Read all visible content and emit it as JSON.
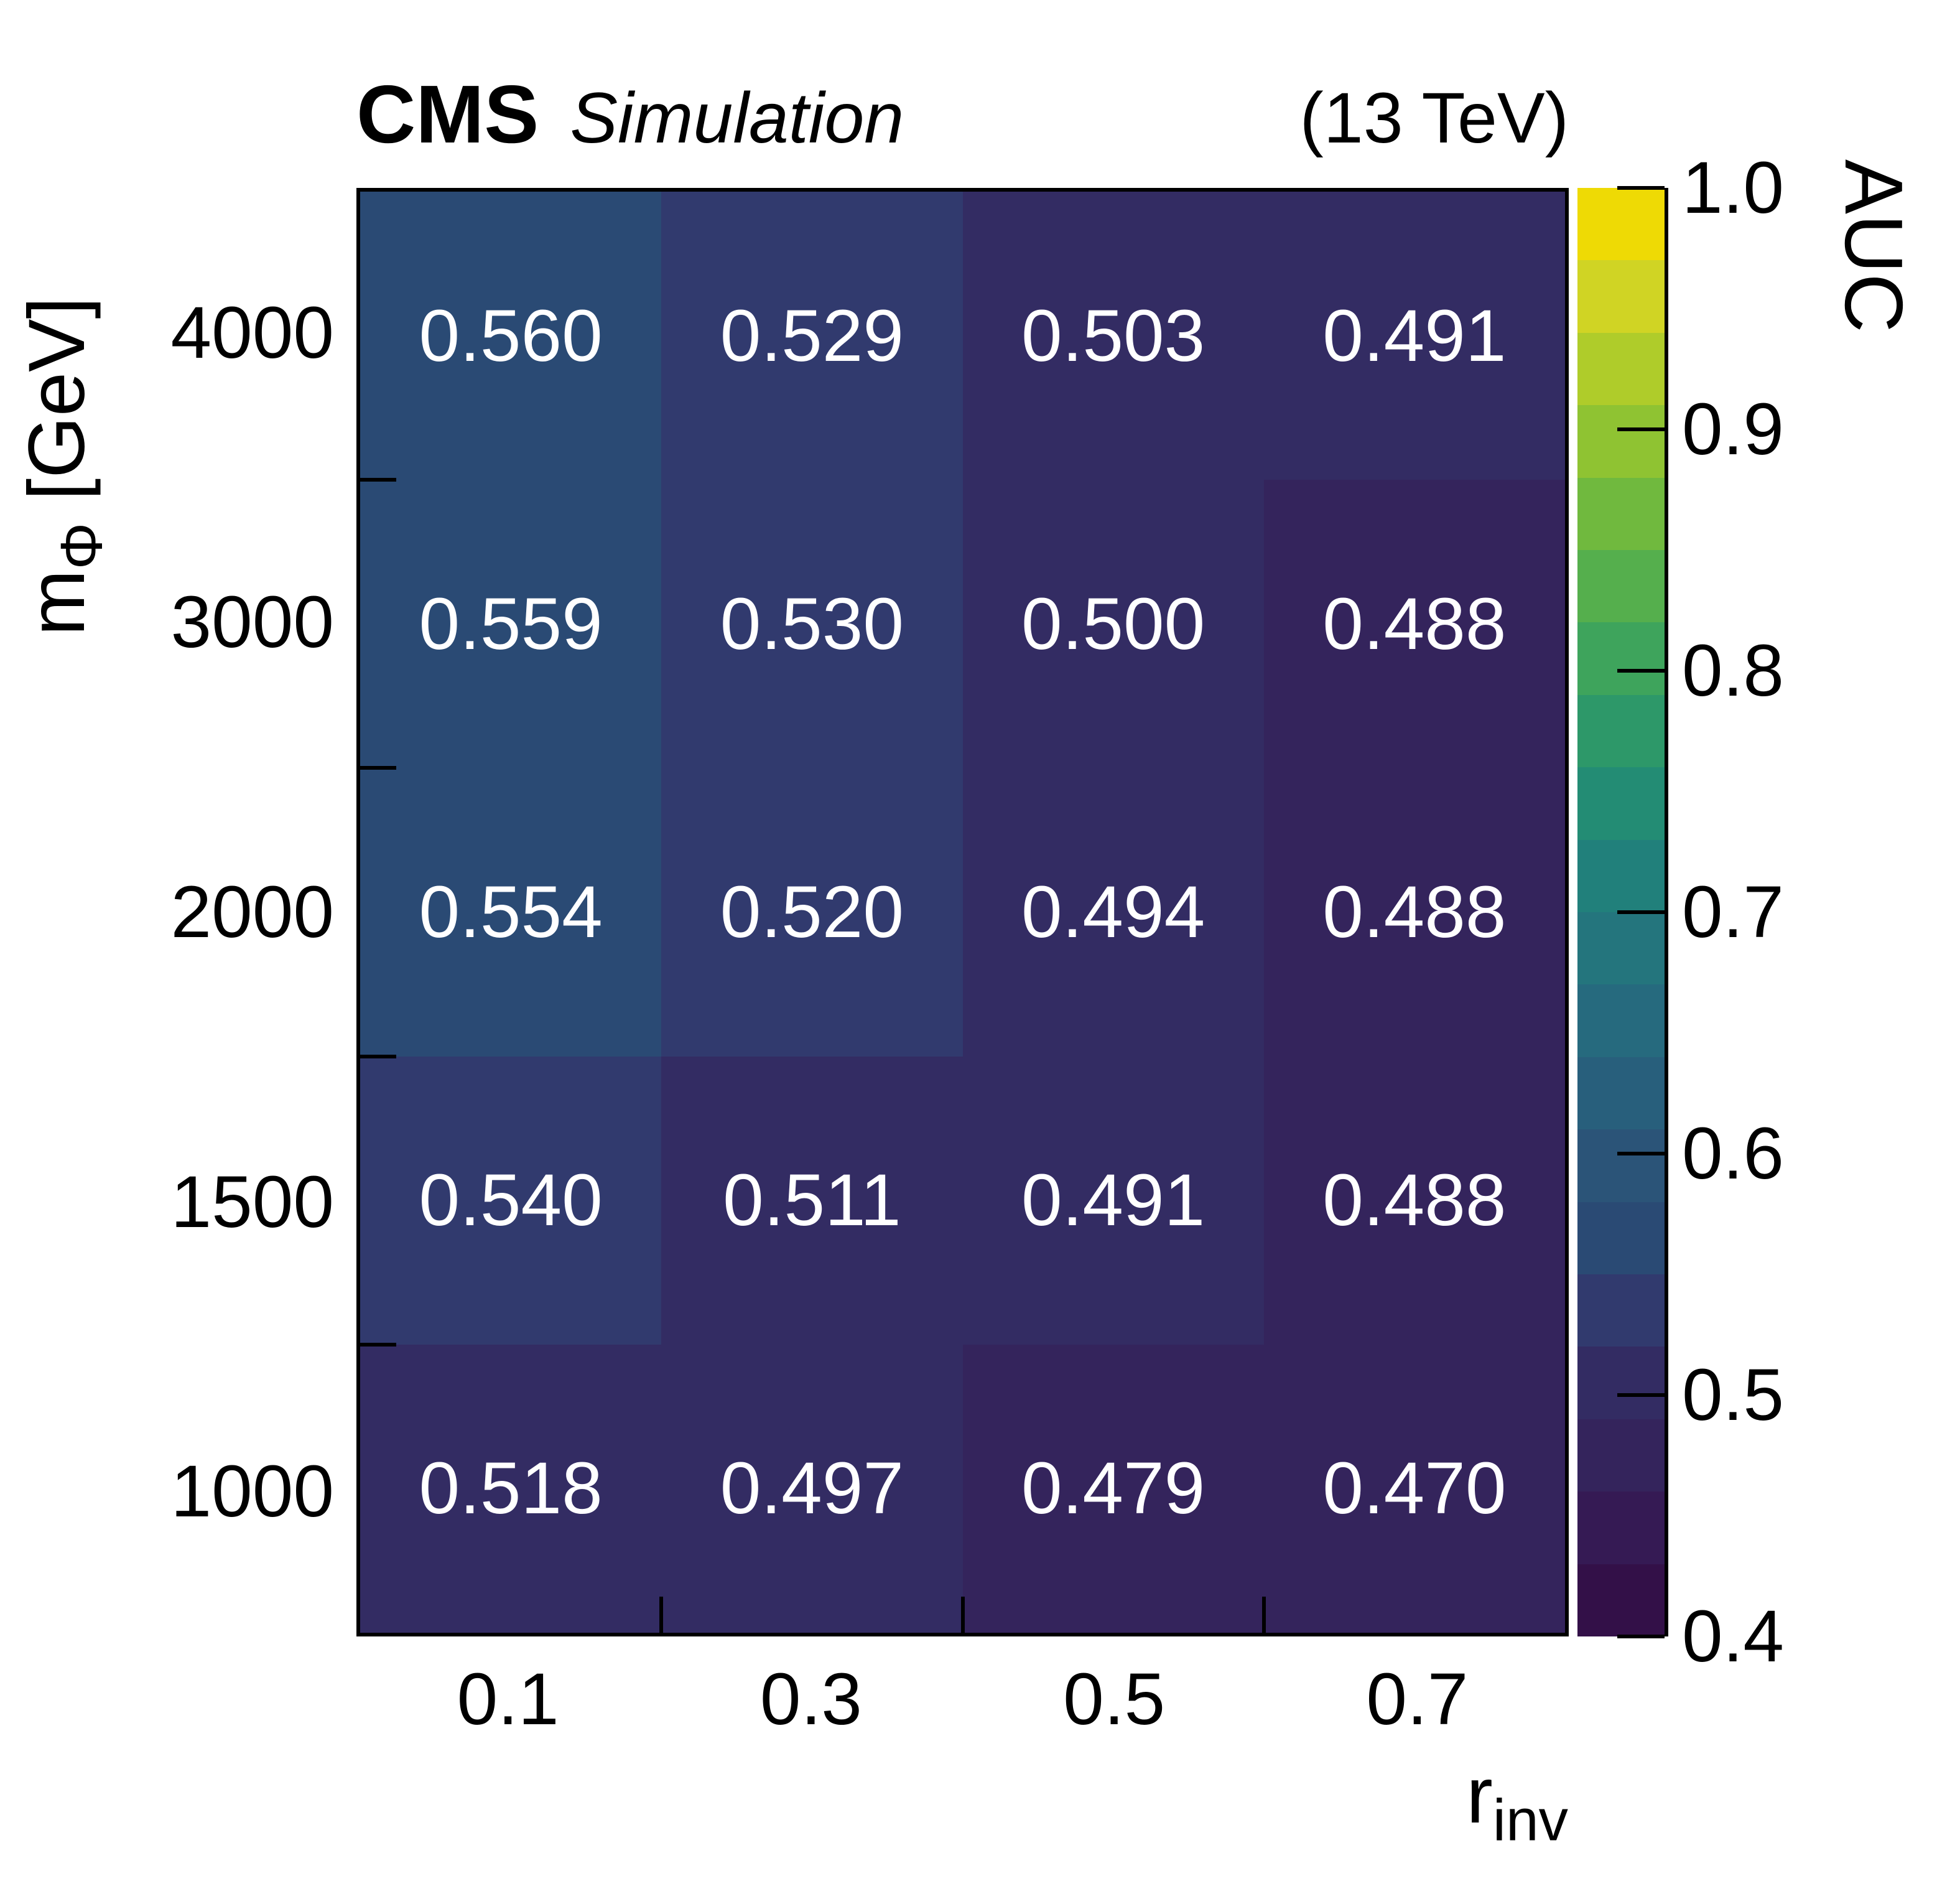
{
  "figure": {
    "header": {
      "experiment": "CMS",
      "label": "Simulation",
      "energy": "(13 TeV)"
    },
    "x_axis": {
      "title_main": "r",
      "title_sub": "inv",
      "tick_labels": [
        "0.1",
        "0.3",
        "0.5",
        "0.7"
      ]
    },
    "y_axis": {
      "title_main": "m",
      "title_sub": "Φ",
      "title_suffix": " [GeV]",
      "tick_labels": [
        "4000",
        "3000",
        "2000",
        "1500",
        "1000"
      ]
    },
    "colorbar": {
      "title": "AUC",
      "min": 0.4,
      "max": 1.0,
      "tick_values": [
        1.0,
        0.9,
        0.8,
        0.7,
        0.6,
        0.5,
        0.4
      ],
      "tick_labels": [
        "1.0",
        "0.9",
        "0.8",
        "0.7",
        "0.6",
        "0.5",
        "0.4"
      ]
    }
  },
  "chart_data": {
    "type": "heatmap",
    "title": "CMS Simulation (13 TeV)",
    "xlabel": "r_inv",
    "ylabel": "m_Phi [GeV]",
    "zlabel": "AUC",
    "x": [
      "0.1",
      "0.3",
      "0.5",
      "0.7"
    ],
    "y": [
      "4000",
      "3000",
      "2000",
      "1500",
      "1000"
    ],
    "zlim": [
      0.4,
      1.0
    ],
    "n_levels": 20,
    "grid": false,
    "rows": [
      {
        "y": "4000",
        "values": [
          0.56,
          0.529,
          0.503,
          0.491
        ],
        "labels": [
          "0.560",
          "0.529",
          "0.503",
          "0.491"
        ]
      },
      {
        "y": "3000",
        "values": [
          0.559,
          0.53,
          0.5,
          0.488
        ],
        "labels": [
          "0.559",
          "0.530",
          "0.500",
          "0.488"
        ]
      },
      {
        "y": "2000",
        "values": [
          0.554,
          0.52,
          0.494,
          0.488
        ],
        "labels": [
          "0.554",
          "0.520",
          "0.494",
          "0.488"
        ]
      },
      {
        "y": "1500",
        "values": [
          0.54,
          0.511,
          0.491,
          0.488
        ],
        "labels": [
          "0.540",
          "0.511",
          "0.491",
          "0.488"
        ]
      },
      {
        "y": "1000",
        "values": [
          0.518,
          0.497,
          0.479,
          0.47
        ],
        "labels": [
          "0.518",
          "0.497",
          "0.479",
          "0.470"
        ]
      }
    ],
    "palette": [
      "#331048",
      "#351a54",
      "#34245c",
      "#332c63",
      "#313a6e",
      "#2a4a74",
      "#2b5478",
      "#285f7c",
      "#266a7e",
      "#24757d",
      "#21807b",
      "#238c74",
      "#2d9869",
      "#3ea45c",
      "#55af4d",
      "#70b93e",
      "#8fc332",
      "#afcc2a",
      "#d0d424",
      "#eeda05"
    ],
    "value_text_color": "#ffffff",
    "frame_color": "#000000"
  }
}
